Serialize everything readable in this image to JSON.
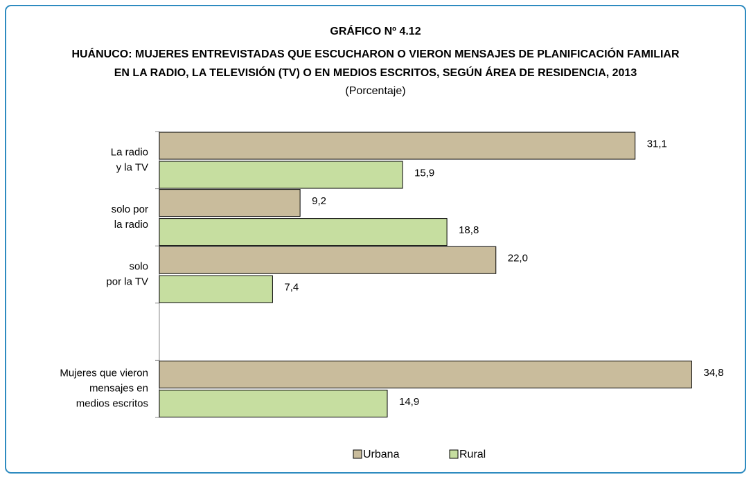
{
  "chart_data": {
    "type": "bar",
    "orientation": "horizontal",
    "title": "GRÁFICO Nº 4.12",
    "subtitle": [
      "HUÁNUCO: MUJERES ENTREVISTADAS QUE ESCUCHARON O VIERON MENSAJES DE PLANIFICACIÓN FAMILIAR",
      "EN LA RADIO, LA TELEVISIÓN (TV) O EN MEDIOS ESCRITOS, SEGÚN ÁREA DE RESIDENCIA, 2013"
    ],
    "unit_note": "(Porcentaje)",
    "categories": [
      [
        "La radio",
        "y la TV"
      ],
      [
        "solo por",
        "la radio"
      ],
      [
        "solo",
        "por la TV"
      ],
      [
        "Mujeres que vieron",
        "mensajes en",
        "medios escritos"
      ]
    ],
    "series": [
      {
        "name": "Urbana",
        "color": "#c9bc9c",
        "values": [
          31.1,
          9.2,
          22.0,
          34.8
        ],
        "value_labels": [
          "31,1",
          "9,2",
          "22,0",
          "34,8"
        ]
      },
      {
        "name": "Rural",
        "color": "#c6dea0",
        "values": [
          15.9,
          18.8,
          7.4,
          14.9
        ],
        "value_labels": [
          "15,9",
          "18,8",
          "7,4",
          "14,9"
        ]
      }
    ],
    "legend": "bottom"
  }
}
